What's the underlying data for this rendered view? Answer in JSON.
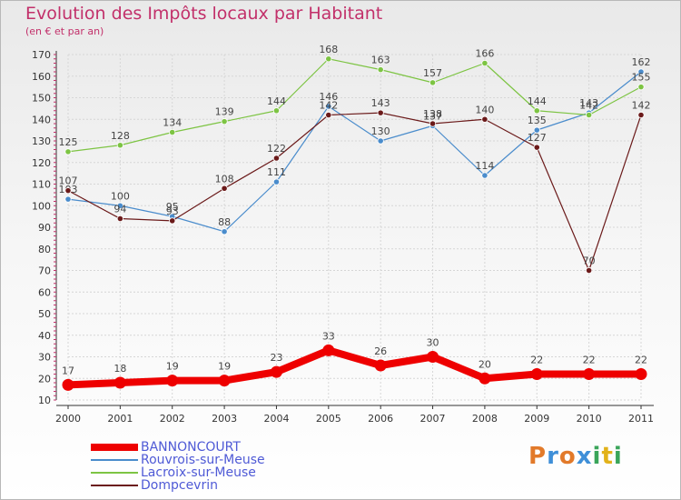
{
  "title": "Evolution des Impôts locaux par Habitant",
  "subtitle": "(en € et par an)",
  "logo": {
    "letters": [
      {
        "ch": "P",
        "color": "#e27a2a"
      },
      {
        "ch": "r",
        "color": "#3f8fd8"
      },
      {
        "ch": "o",
        "color": "#e27a2a"
      },
      {
        "ch": "x",
        "color": "#3f8fd8"
      },
      {
        "ch": "i",
        "color": "#3aa55a"
      },
      {
        "ch": "t",
        "color": "#e2b21a"
      },
      {
        "ch": "i",
        "color": "#3aa55a"
      }
    ]
  },
  "chart_data": {
    "type": "line",
    "title": "Evolution des Impôts locaux par Habitant",
    "subtitle": "(en € et par an)",
    "categories": [
      "2000",
      "2001",
      "2002",
      "2003",
      "2004",
      "2005",
      "2006",
      "2007",
      "2008",
      "2009",
      "2010",
      "2011"
    ],
    "ylim": [
      10,
      170
    ],
    "yticks": [
      10,
      20,
      30,
      40,
      50,
      60,
      70,
      80,
      90,
      100,
      110,
      120,
      130,
      140,
      150,
      160,
      170
    ],
    "grid": true,
    "legend_position": "bottom-left",
    "series": [
      {
        "name": "BANNONCOURT",
        "color": "#ee0000",
        "emphasis": true,
        "values": [
          17,
          18,
          19,
          19,
          23,
          33,
          26,
          30,
          20,
          22,
          22,
          22
        ]
      },
      {
        "name": "Rouvrois-sur-Meuse",
        "color": "#4a8ccc",
        "emphasis": false,
        "values": [
          103,
          100,
          95,
          88,
          111,
          146,
          130,
          137,
          114,
          135,
          143,
          162
        ]
      },
      {
        "name": "Lacroix-sur-Meuse",
        "color": "#7dc443",
        "emphasis": false,
        "values": [
          125,
          128,
          134,
          139,
          144,
          168,
          163,
          157,
          166,
          144,
          142,
          155
        ]
      },
      {
        "name": "Dompcevrin",
        "color": "#6b1a1a",
        "emphasis": false,
        "values": [
          107,
          94,
          93,
          108,
          122,
          142,
          143,
          138,
          140,
          127,
          70,
          142
        ]
      }
    ]
  }
}
